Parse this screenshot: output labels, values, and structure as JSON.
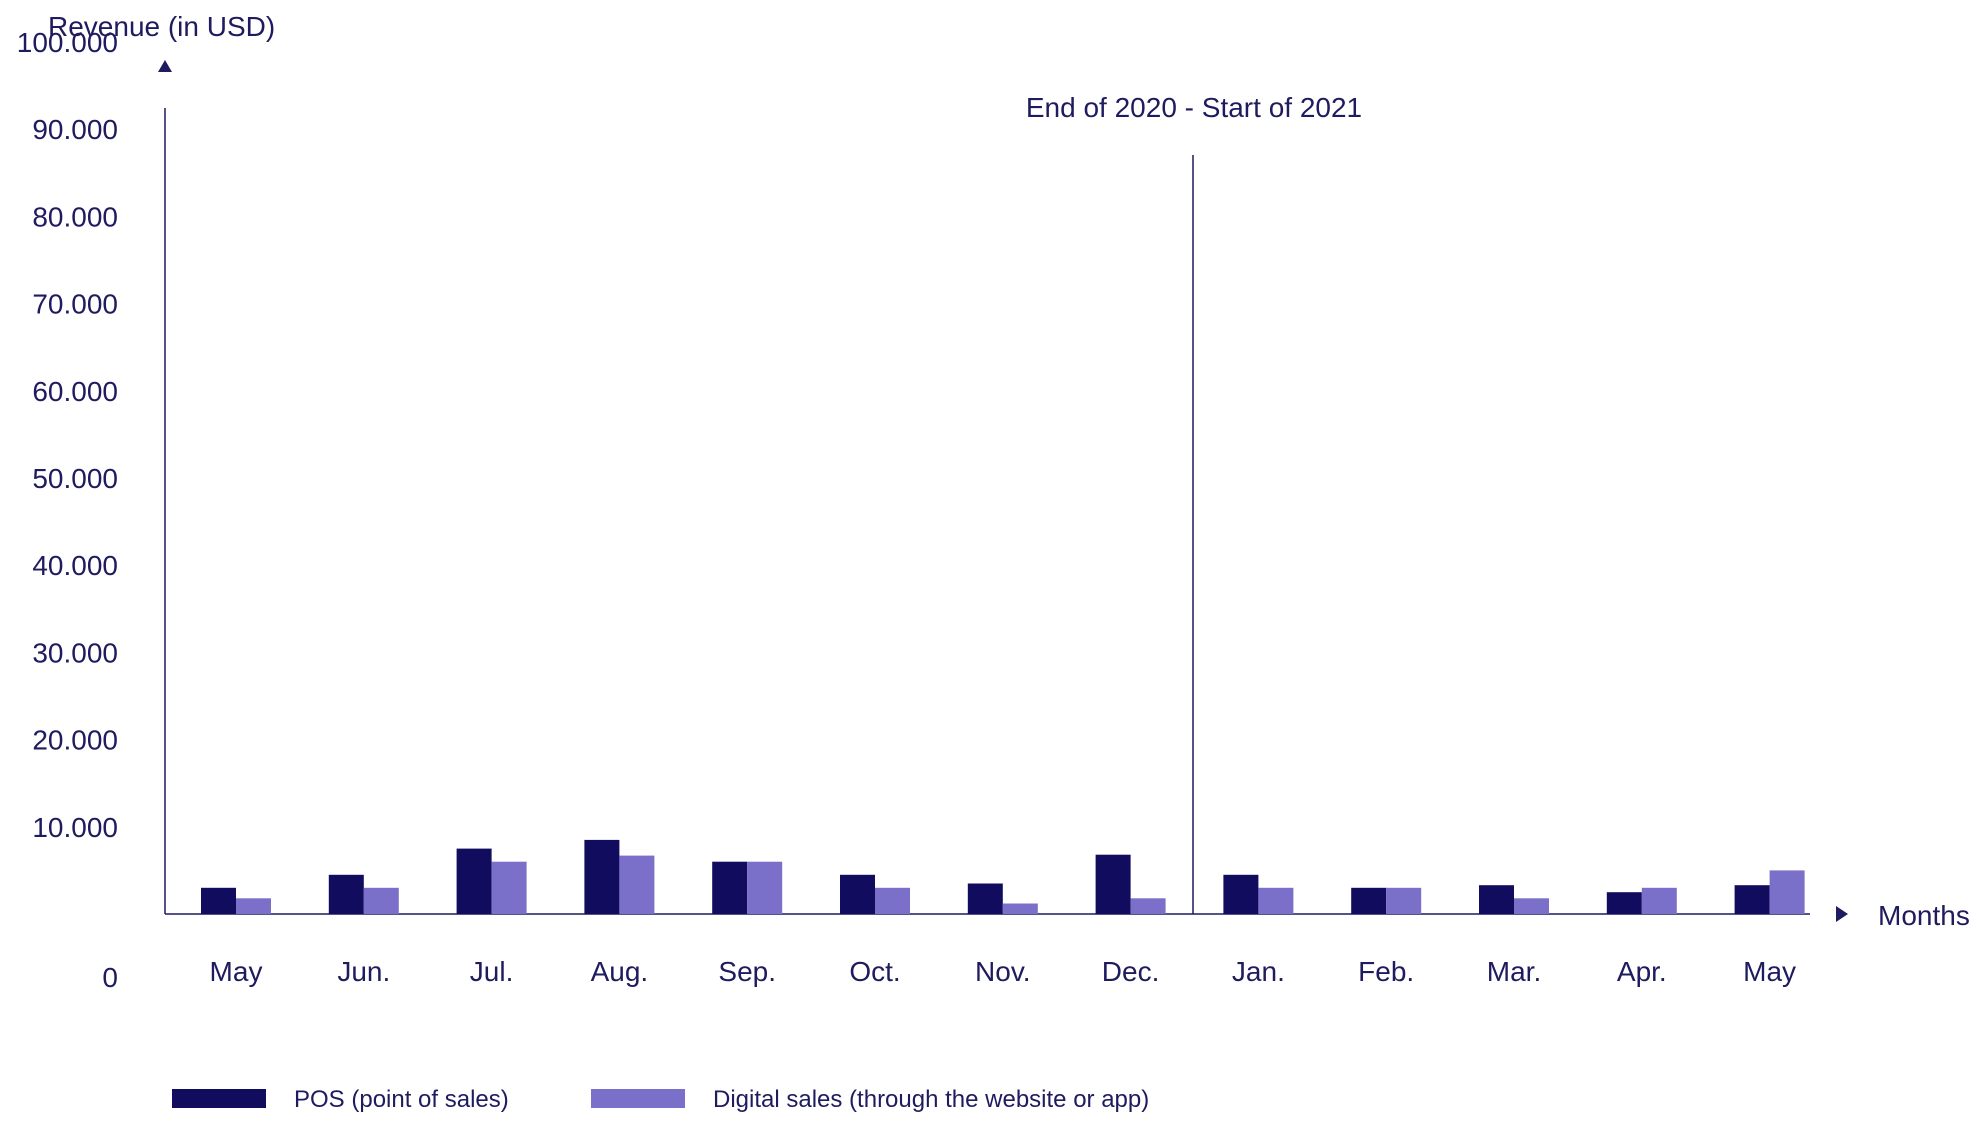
{
  "chart_data": {
    "type": "bar",
    "ylabel": "Revenue (in USD)",
    "xlabel": "Months",
    "ylim": [
      0,
      100000
    ],
    "y_ticks": [
      {
        "value": 0,
        "label": "0"
      },
      {
        "value": 10000,
        "label": "10.000"
      },
      {
        "value": 20000,
        "label": "20.000"
      },
      {
        "value": 30000,
        "label": "30.000"
      },
      {
        "value": 40000,
        "label": "40.000"
      },
      {
        "value": 50000,
        "label": "50.000"
      },
      {
        "value": 60000,
        "label": "60.000"
      },
      {
        "value": 70000,
        "label": "70.000"
      },
      {
        "value": 80000,
        "label": "80.000"
      },
      {
        "value": 90000,
        "label": "90.000"
      },
      {
        "value": 100000,
        "label": "100.000"
      }
    ],
    "categories": [
      "May",
      "Jun.",
      "Jul.",
      "Aug.",
      "Sep.",
      "Oct.",
      "Nov.",
      "Dec.",
      "Jan.",
      "Feb.",
      "Mar.",
      "Apr.",
      "May"
    ],
    "series": [
      {
        "name": "POS (point of sales)",
        "color": "#120c5e",
        "values": [
          3000,
          4500,
          7500,
          8500,
          6000,
          4500,
          3500,
          6800,
          4500,
          3000,
          3300,
          2500,
          3300
        ]
      },
      {
        "name": "Digital sales (through the website or app)",
        "color": "#7b70c9",
        "values": [
          1800,
          3000,
          6000,
          6700,
          6000,
          3000,
          1200,
          1800,
          3000,
          3000,
          1800,
          3000,
          5000
        ]
      }
    ],
    "annotations": [
      {
        "text": "End of 2020 - Start of 2021",
        "between": [
          "Dec.",
          "Jan."
        ]
      }
    ],
    "grid": false,
    "legend_position": "bottom-left",
    "axis_color": "#1e1b5e"
  }
}
